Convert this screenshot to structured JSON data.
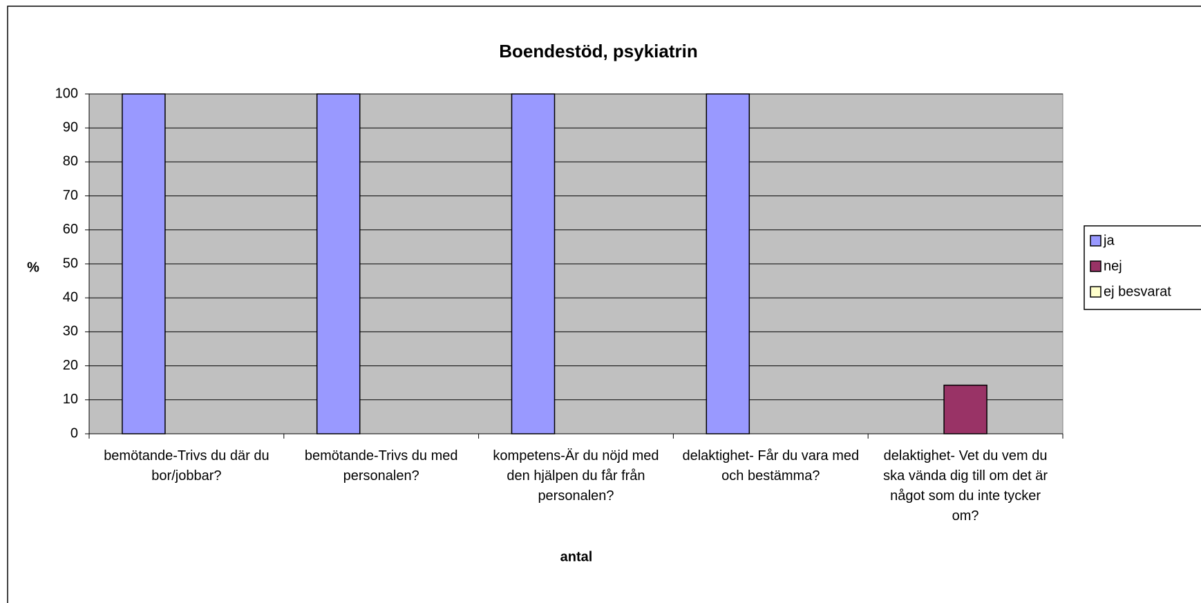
{
  "chart_data": {
    "type": "bar",
    "title": "Boendestöd, psykiatrin",
    "x_label": "antal",
    "y_label": "%",
    "categories": [
      "bemötande-Trivs du där du bor/jobbar?",
      "bemötande-Trivs du med personalen?",
      "kompetens-Är du nöjd med den hjälpen du får från personalen?",
      "delaktighet- Får du vara med och bestämma?",
      "delaktighet- Vet du vem du ska vända dig till om det är något som du inte tycker om?"
    ],
    "series": [
      {
        "name": "ja",
        "color": "#9999ff",
        "values": [
          100,
          100,
          100,
          100,
          0
        ]
      },
      {
        "name": "nej",
        "color": "#993366",
        "values": [
          0,
          0,
          0,
          0,
          14.3
        ]
      },
      {
        "name": "ej besvarat",
        "color": "#ffffcc",
        "values": [
          0,
          0,
          0,
          0,
          0
        ]
      }
    ],
    "ylim": [
      0,
      100
    ],
    "yticks": [
      0,
      10,
      20,
      30,
      40,
      50,
      60,
      70,
      80,
      90,
      100
    ],
    "grid": true,
    "legend": "right",
    "plot_background": "#c0c0c0"
  }
}
